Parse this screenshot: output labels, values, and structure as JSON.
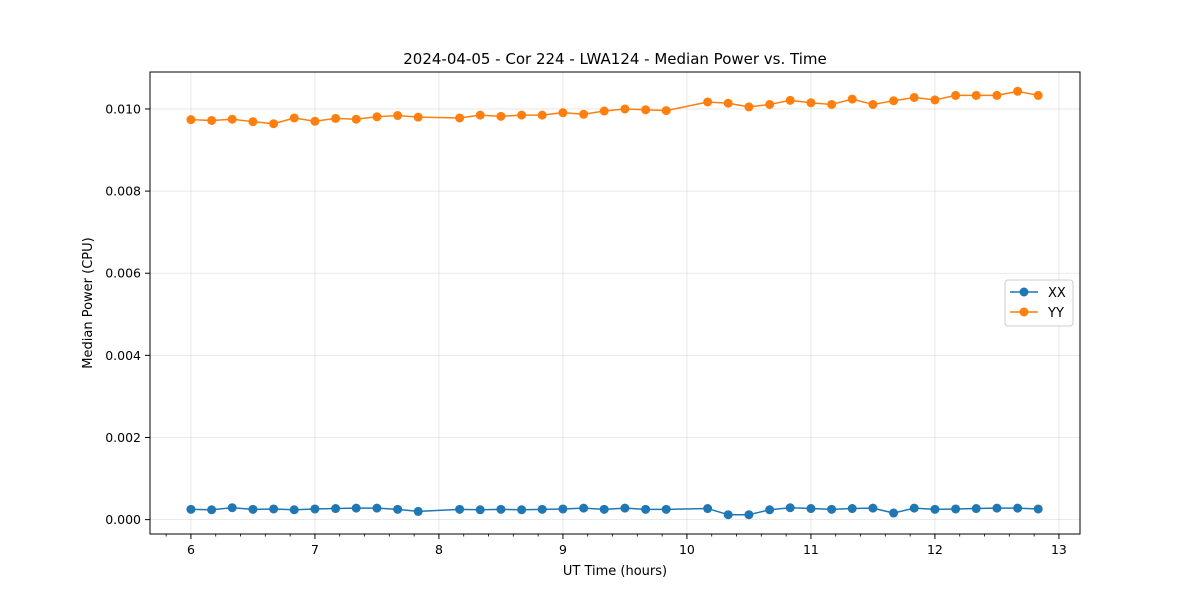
{
  "chart_data": {
    "type": "line",
    "title": "2024-04-05 - Cor 224 - LWA124 - Median Power vs. Time",
    "xlabel": "UT Time (hours)",
    "ylabel": "Median Power (CPU)",
    "xlim": [
      5.67,
      13.17
    ],
    "ylim": [
      -0.00035,
      0.0109
    ],
    "x_ticks": [
      6,
      7,
      8,
      9,
      10,
      11,
      12,
      13
    ],
    "x_tick_labels": [
      "6",
      "7",
      "8",
      "9",
      "10",
      "11",
      "12",
      "13"
    ],
    "y_ticks": [
      0.0,
      0.002,
      0.004,
      0.006,
      0.008,
      0.01
    ],
    "y_tick_labels": [
      "0.000",
      "0.002",
      "0.004",
      "0.006",
      "0.008",
      "0.010"
    ],
    "grid": true,
    "legend_position": "center-right",
    "series": [
      {
        "name": "XX",
        "color": "#1f77b4",
        "x": [
          6.0,
          6.167,
          6.333,
          6.5,
          6.667,
          6.833,
          7.0,
          7.167,
          7.333,
          7.5,
          7.667,
          7.833,
          8.167,
          8.333,
          8.5,
          8.667,
          8.833,
          9.0,
          9.167,
          9.333,
          9.5,
          9.667,
          9.833,
          10.167,
          10.333,
          10.5,
          10.667,
          10.833,
          11.0,
          11.167,
          11.333,
          11.5,
          11.667,
          11.833,
          12.0,
          12.167,
          12.333,
          12.5,
          12.667,
          12.833
        ],
        "y": [
          0.00025,
          0.00024,
          0.00029,
          0.00025,
          0.00026,
          0.00024,
          0.00026,
          0.00027,
          0.00028,
          0.00028,
          0.00025,
          0.0002,
          0.00025,
          0.00024,
          0.00025,
          0.00024,
          0.00025,
          0.00026,
          0.00028,
          0.00025,
          0.00028,
          0.00025,
          0.00025,
          0.00027,
          0.00012,
          0.00012,
          0.00024,
          0.00029,
          0.00027,
          0.00025,
          0.00027,
          0.00028,
          0.00016,
          0.00028,
          0.00025,
          0.00026,
          0.00027,
          0.00028,
          0.00028,
          0.00026
        ]
      },
      {
        "name": "YY",
        "color": "#ff7f0e",
        "x": [
          6.0,
          6.167,
          6.333,
          6.5,
          6.667,
          6.833,
          7.0,
          7.167,
          7.333,
          7.5,
          7.667,
          7.833,
          8.167,
          8.333,
          8.5,
          8.667,
          8.833,
          9.0,
          9.167,
          9.333,
          9.5,
          9.667,
          9.833,
          10.167,
          10.333,
          10.5,
          10.667,
          10.833,
          11.0,
          11.167,
          11.333,
          11.5,
          11.667,
          11.833,
          12.0,
          12.167,
          12.333,
          12.5,
          12.667,
          12.833
        ],
        "y": [
          0.00974,
          0.00972,
          0.00975,
          0.00969,
          0.00964,
          0.00978,
          0.0097,
          0.00977,
          0.00975,
          0.00981,
          0.00984,
          0.0098,
          0.00978,
          0.00985,
          0.00982,
          0.00985,
          0.00985,
          0.00991,
          0.00987,
          0.00995,
          0.01,
          0.00998,
          0.00996,
          0.01017,
          0.01014,
          0.01005,
          0.01011,
          0.01021,
          0.01015,
          0.01011,
          0.01024,
          0.01011,
          0.0102,
          0.01028,
          0.01022,
          0.01033,
          0.01033,
          0.01033,
          0.01043,
          0.01033
        ]
      }
    ]
  }
}
